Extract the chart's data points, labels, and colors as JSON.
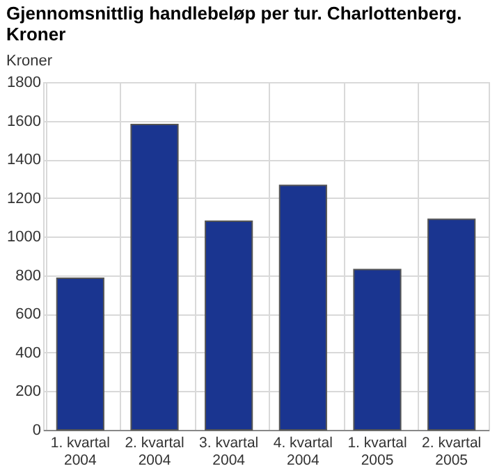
{
  "chart_data": {
    "type": "bar",
    "title": [
      "Gjennomsnittlig handlebeløp per tur. Charlottenberg.",
      "Kroner"
    ],
    "ylabel": "Kroner",
    "categories": [
      "1. kvartal\n2004",
      "2. kvartal\n2004",
      "3. kvartal\n2004",
      "4. kvartal\n2004",
      "1. kvartal\n2005",
      "2. kvartal\n2005"
    ],
    "values": [
      785,
      1580,
      1080,
      1265,
      830,
      1090
    ],
    "color": "#1a3590",
    "ylim": [
      0,
      1800
    ],
    "yticks": [
      0,
      200,
      400,
      600,
      800,
      1000,
      1200,
      1400,
      1600,
      1800
    ],
    "grid": true
  }
}
